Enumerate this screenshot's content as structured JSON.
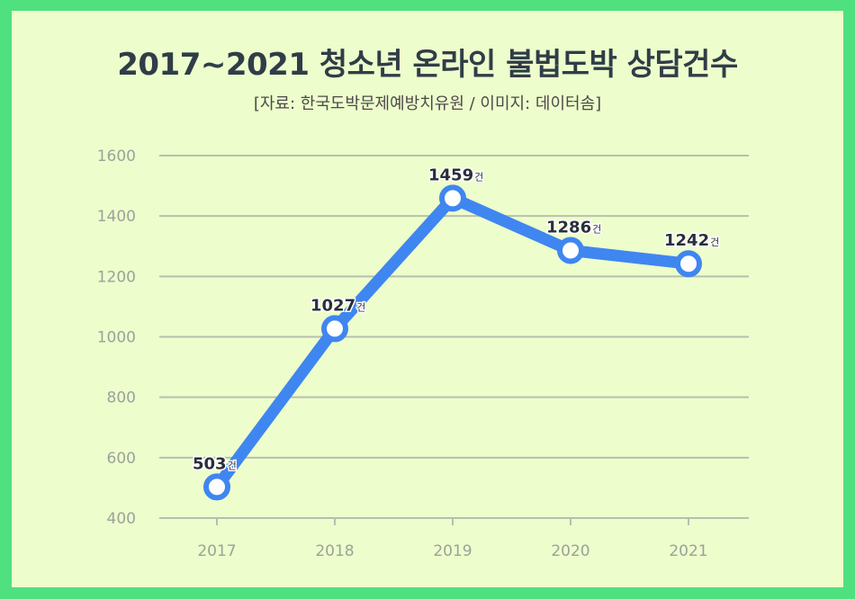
{
  "title": "2017~2021 청소년 온라인 불법도박 상담건수",
  "subtitle": "[자료: 한국도박문제예방치유원 / 이미지: 데이터솜]",
  "colors": {
    "background": "#4fe07f",
    "panel": "#eefdcc",
    "line": "#3f86f0",
    "grid": "#b7bfae"
  },
  "chart_data": {
    "type": "line",
    "title": "2017~2021 청소년 온라인 불법도박 상담건수",
    "xlabel": "",
    "ylabel": "",
    "categories": [
      "2017",
      "2018",
      "2019",
      "2020",
      "2021"
    ],
    "series": [
      {
        "values": [
          503,
          1027,
          1459,
          1286,
          1242
        ]
      }
    ],
    "data_label_unit": "건",
    "ylim": [
      400,
      1600
    ],
    "yticks": [
      "400",
      "600",
      "800",
      "1000",
      "1200",
      "1400",
      "1600"
    ],
    "grid": true,
    "legend": "none"
  }
}
